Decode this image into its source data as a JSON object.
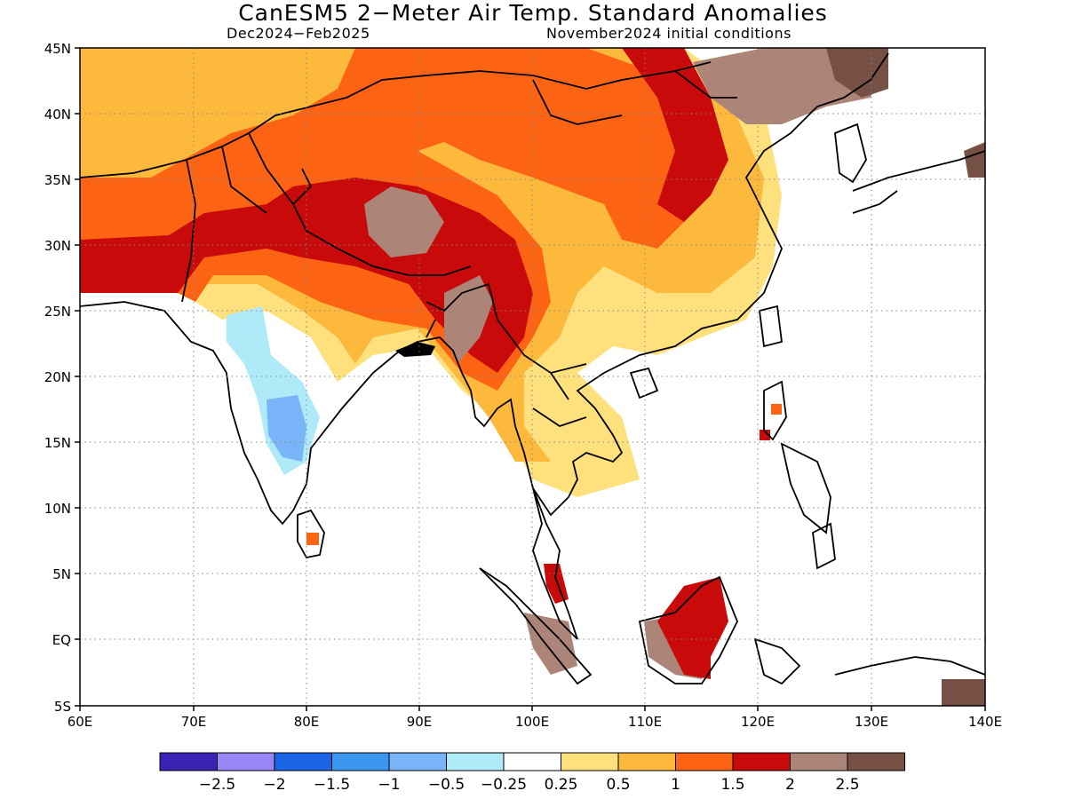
{
  "header": {
    "title": "CanESM5 2−Meter Air Temp. Standard Anomalies",
    "period": "Dec2024−Feb2025",
    "init": "November2024 initial conditions"
  },
  "map": {
    "lon_ticks": [
      "60E",
      "70E",
      "80E",
      "90E",
      "100E",
      "110E",
      "120E",
      "130E",
      "140E"
    ],
    "lat_ticks": [
      "45N",
      "40N",
      "35N",
      "30N",
      "25N",
      "20N",
      "15N",
      "10N",
      "5N",
      "EQ",
      "5S"
    ],
    "lon_range": [
      60,
      140
    ],
    "lat_range": [
      -5,
      45
    ],
    "grid": "dotted"
  },
  "colorbar": {
    "colors": [
      "#3b22b4",
      "#9a85f5",
      "#1a64e6",
      "#3d96f0",
      "#78b4f7",
      "#aeeaf8",
      "#ffffff",
      "#fee07d",
      "#fdb93b",
      "#fc6414",
      "#c80a0a",
      "#ad8478",
      "#765045"
    ],
    "labels": [
      "−2.5",
      "−2",
      "−1.5",
      "−1",
      "−0.5",
      "−0.25",
      "0.25",
      "0.5",
      "1",
      "1.5",
      "2",
      "2.5"
    ]
  }
}
